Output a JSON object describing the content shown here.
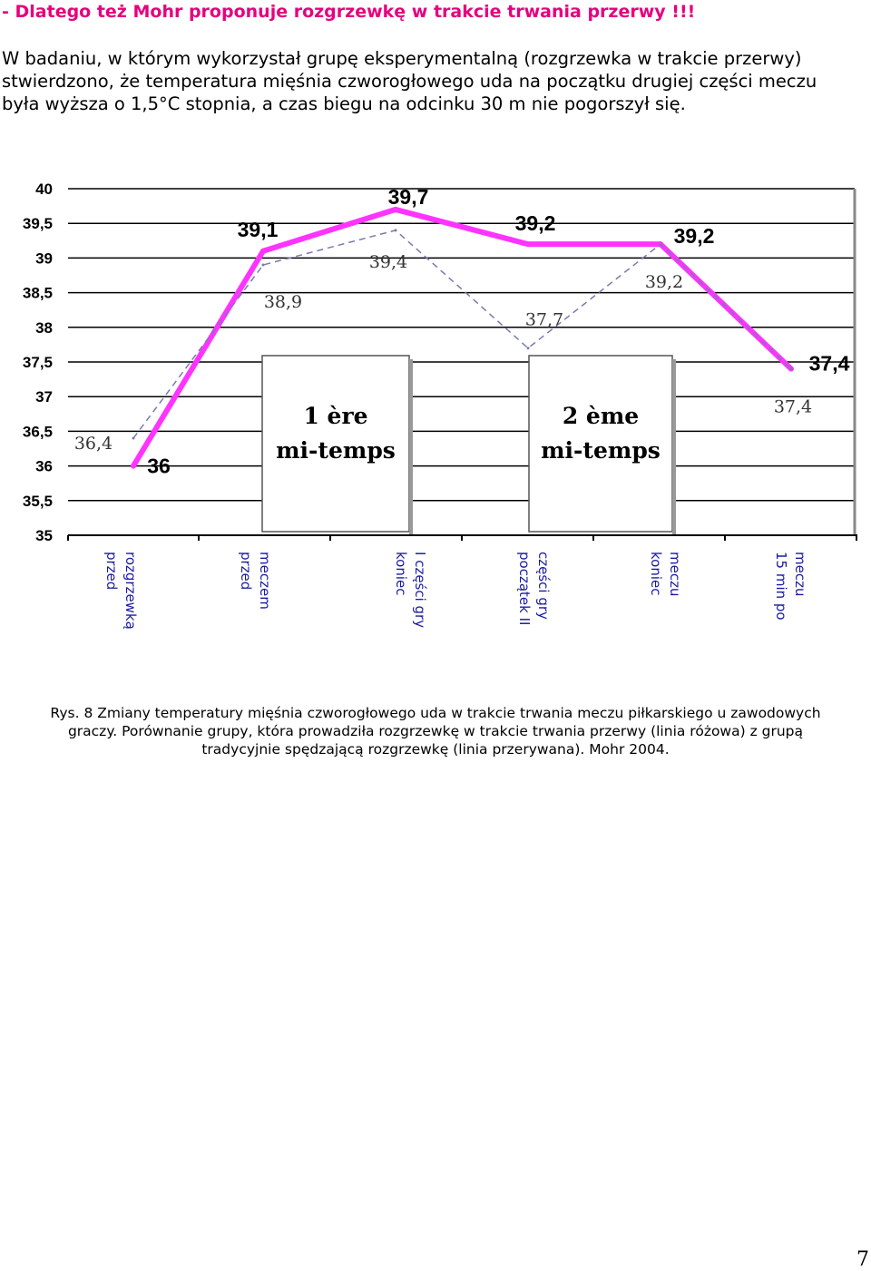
{
  "heading": "- Dlatego też Mohr proponuje rozgrzewkę w trakcie trwania przerwy !!!",
  "intro_lines": [
    "W badaniu, w którym wykorzystał grupę eksperymentalną (rozgrzewka w trakcie przerwy)",
    "stwierdzono, że temperatura mięśnia czworogłowego uda na początku drugiej części meczu",
    "była wyższa o 1,5°C stopnia, a czas biegu na odcinku 30 m nie pogorszył się."
  ],
  "caption_lines": [
    "Rys. 8 Zmiany temperatury mięśnia czworogłowego uda w trakcie trwania meczu piłkarskiego u zawodowych",
    "graczy. Porównanie grupy, która prowadziła rozgrzewkę w trakcie trwania przerwy (linia różowa) z grupą",
    "tradycyjnie spędzającą rozgrzewkę (linia przerywana). Mohr 2004."
  ],
  "page_number": "7",
  "colors": {
    "heading": "#e6007e",
    "warmup_line": "#ff33ff",
    "traditional_line": "#7a7ab0",
    "x_labels": "#1a1aa0",
    "gridline": "#000000"
  },
  "chart_data": {
    "type": "line",
    "ylim": [
      35,
      40
    ],
    "yticks": [
      "35",
      "35,5",
      "36",
      "36,5",
      "37",
      "37,5",
      "38",
      "38,5",
      "39",
      "39,5",
      "40"
    ],
    "grid": true,
    "x_labels": [
      [
        "przed",
        "rozgrzewką"
      ],
      [
        "przed",
        "meczem"
      ],
      [
        "koniec",
        "I części gry"
      ],
      [
        "początek  II",
        "części gry"
      ],
      [
        "koniec",
        "meczu"
      ],
      [
        "15 min po",
        "meczu"
      ]
    ],
    "series": [
      {
        "style": "solid",
        "values": [
          36,
          39.1,
          39.7,
          39.2,
          39.2,
          37.4
        ],
        "labels": [
          "36",
          "39,1",
          "39,7",
          "39,2",
          "39,2",
          "37,4"
        ]
      },
      {
        "style": "dashed",
        "values": [
          36.4,
          38.9,
          39.4,
          37.7,
          39.2,
          37.4
        ],
        "labels": [
          "36,4",
          "38,9",
          "39,4",
          "37,7",
          "39,2",
          "37,4"
        ]
      }
    ],
    "annotations": [
      [
        "1 ère",
        "mi-temps"
      ],
      [
        "2 ème",
        "mi-temps"
      ]
    ]
  }
}
